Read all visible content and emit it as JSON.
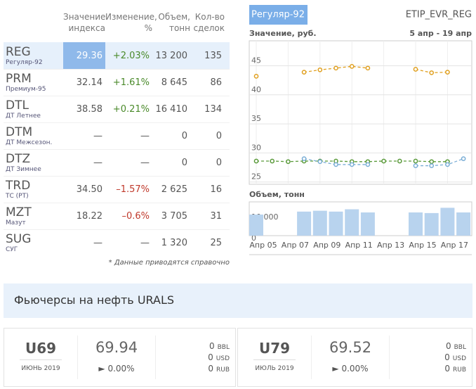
{
  "table": {
    "headers": [
      "Значение индекса",
      "Изменение, %",
      "Объем, тонн",
      "Кол-во сделок"
    ],
    "rows": [
      {
        "code": "REG",
        "name": "Регуляр-92",
        "value": "29.36",
        "change": "+2.03%",
        "volume": "13 200",
        "deals": "135"
      },
      {
        "code": "PRM",
        "name": "Премиум-95",
        "value": "32.14",
        "change": "+1.61%",
        "volume": "8 645",
        "deals": "86"
      },
      {
        "code": "DTL",
        "name": "ДТ Летнее",
        "value": "38.58",
        "change": "+0.21%",
        "volume": "16 410",
        "deals": "134"
      },
      {
        "code": "DTM",
        "name": "ДТ Межсезон.",
        "value": "—",
        "change": "—",
        "volume": "0",
        "deals": "0"
      },
      {
        "code": "DTZ",
        "name": "ДТ Зимнее",
        "value": "—",
        "change": "—",
        "volume": "0",
        "deals": "0"
      },
      {
        "code": "TRD",
        "name": "ТС (РТ)",
        "value": "34.50",
        "change": "–1.57%",
        "volume": "2 625",
        "deals": "16"
      },
      {
        "code": "MZT",
        "name": "Мазут",
        "value": "18.22",
        "change": "–0.6%",
        "volume": "3 705",
        "deals": "31"
      },
      {
        "code": "SUG",
        "name": "СУГ",
        "value": "—",
        "change": "—",
        "volume": "1 320",
        "deals": "25"
      }
    ],
    "note": "* Данные приводятся справочно"
  },
  "panel": {
    "tab": "Регуляр-92",
    "code": "ETIP_EVR_REG"
  },
  "chart_data": [
    {
      "type": "line",
      "title": "Значение, руб.",
      "subtitle": "5 апр - 19 апр",
      "categories": [
        "Апр 05",
        null,
        "Апр 07",
        null,
        "Апр 09",
        null,
        "Апр 11",
        null,
        "Апр 13",
        null,
        "Апр 15",
        null,
        "Апр 17",
        null
      ],
      "series": [
        {
          "color": "#e0a020",
          "values": [
            43.2,
            null,
            null,
            43.9,
            44.3,
            44.6,
            44.9,
            44.6,
            null,
            null,
            44.4,
            43.8,
            43.9,
            null
          ]
        },
        {
          "color": "#5a9a3a",
          "values": [
            28.6,
            28.6,
            28.5,
            28.6,
            28.6,
            28.6,
            28.5,
            28.5,
            28.6,
            28.6,
            28.6,
            28.5,
            28.5,
            null
          ]
        },
        {
          "color": "#7aaed6",
          "values": [
            null,
            null,
            null,
            29,
            28.5,
            28,
            28,
            28,
            null,
            null,
            27.8,
            27.8,
            28,
            29
          ]
        }
      ],
      "ylim": [
        24.6,
        49.3
      ],
      "yticks": [
        25,
        30,
        35,
        40,
        45
      ],
      "grid": true
    },
    {
      "type": "bar",
      "title": "Объем, тонн",
      "categories": [
        "Апр 05",
        null,
        "Апр 07",
        null,
        "Апр 09",
        null,
        "Апр 11",
        null,
        "Апр 13",
        null,
        "Апр 15",
        null,
        "Апр 17",
        null
      ],
      "values": [
        10000,
        null,
        null,
        11400,
        11800,
        11400,
        12500,
        11000,
        null,
        null,
        11000,
        10700,
        13200,
        11000
      ],
      "color": "#b8d3ee",
      "ylim": [
        0,
        16000
      ],
      "yticks": [
        0,
        {
          "value": 10000,
          "label": "10 000"
        }
      ],
      "grid": false
    }
  ],
  "futures": {
    "title": "Фьючерсы на нефть URALS",
    "items": [
      {
        "code": "U69",
        "month": "ИЮНЬ 2019",
        "price": "69.94",
        "change": "0.00%",
        "volumes": [
          {
            "value": "0",
            "unit": "BBL"
          },
          {
            "value": "0",
            "unit": "USD"
          },
          {
            "value": "0",
            "unit": "RUB"
          }
        ]
      },
      {
        "code": "U79",
        "month": "ИЮЛЬ 2019",
        "price": "69.52",
        "change": "0.00%",
        "volumes": [
          {
            "value": "0",
            "unit": "BBL"
          },
          {
            "value": "0",
            "unit": "USD"
          },
          {
            "value": "0",
            "unit": "RUB"
          }
        ]
      }
    ]
  }
}
